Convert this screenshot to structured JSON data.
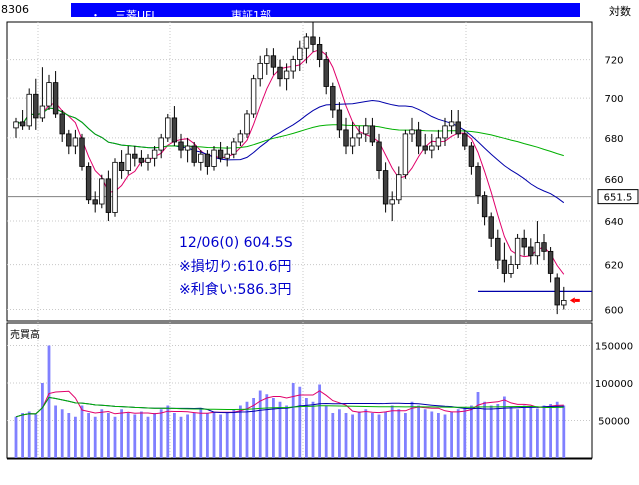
{
  "header": {
    "code": "8306",
    "dot": "・",
    "name": "三菱UFJ",
    "market": "東証1部",
    "scale": "対数"
  },
  "annotations": {
    "line1": "12/06(0) 604.5S",
    "line2": "※損切り:610.6円",
    "line3": "※利食い:586.3円"
  },
  "price_marker": "651.5",
  "volume_label": "売買高",
  "colors": {
    "up": "#ffffff",
    "down": "#404040",
    "ma_short": "#e0006a",
    "ma_mid": "#0000aa",
    "ma_long": "#00b000",
    "volume_bar": "#8080ff",
    "annotation": "#0000cc"
  },
  "chart_data": [
    {
      "type": "candlestick",
      "scale": "log",
      "ylim": [
        595,
        740
      ],
      "yticks": [
        600,
        620,
        640,
        660,
        680,
        700,
        720
      ],
      "grid": true,
      "reference_line": 651.5,
      "target_line": 608,
      "candles": [
        [
          685,
          690,
          680,
          688
        ],
        [
          688,
          694,
          684,
          686
        ],
        [
          686,
          705,
          684,
          702
        ],
        [
          702,
          710,
          684,
          690
        ],
        [
          690,
          716,
          688,
          696
        ],
        [
          696,
          712,
          694,
          708
        ],
        [
          708,
          714,
          690,
          692
        ],
        [
          692,
          694,
          678,
          682
        ],
        [
          682,
          684,
          672,
          676
        ],
        [
          676,
          684,
          672,
          680
        ],
        [
          680,
          682,
          664,
          666
        ],
        [
          666,
          668,
          648,
          650
        ],
        [
          650,
          654,
          644,
          648
        ],
        [
          648,
          662,
          646,
          660
        ],
        [
          660,
          664,
          640,
          644
        ],
        [
          644,
          670,
          642,
          668
        ],
        [
          668,
          674,
          660,
          664
        ],
        [
          664,
          676,
          662,
          672
        ],
        [
          672,
          676,
          666,
          670
        ],
        [
          670,
          674,
          666,
          668
        ],
        [
          668,
          672,
          664,
          670
        ],
        [
          670,
          676,
          666,
          674
        ],
        [
          674,
          682,
          670,
          680
        ],
        [
          680,
          692,
          678,
          690
        ],
        [
          690,
          696,
          676,
          678
        ],
        [
          678,
          682,
          670,
          674
        ],
        [
          674,
          680,
          668,
          676
        ],
        [
          676,
          678,
          666,
          668
        ],
        [
          668,
          674,
          664,
          672
        ],
        [
          672,
          674,
          662,
          666
        ],
        [
          666,
          676,
          664,
          674
        ],
        [
          674,
          678,
          668,
          670
        ],
        [
          670,
          676,
          666,
          672
        ],
        [
          672,
          680,
          670,
          678
        ],
        [
          678,
          684,
          676,
          682
        ],
        [
          682,
          694,
          680,
          692
        ],
        [
          692,
          712,
          690,
          710
        ],
        [
          710,
          722,
          706,
          718
        ],
        [
          718,
          726,
          712,
          722
        ],
        [
          722,
          726,
          712,
          716
        ],
        [
          716,
          720,
          706,
          710
        ],
        [
          710,
          718,
          704,
          714
        ],
        [
          714,
          722,
          710,
          720
        ],
        [
          720,
          730,
          714,
          726
        ],
        [
          726,
          734,
          718,
          732
        ],
        [
          732,
          740,
          724,
          728
        ],
        [
          728,
          732,
          716,
          720
        ],
        [
          720,
          724,
          702,
          706
        ],
        [
          706,
          708,
          690,
          694
        ],
        [
          694,
          698,
          680,
          684
        ],
        [
          684,
          690,
          672,
          676
        ],
        [
          676,
          688,
          672,
          680
        ],
        [
          680,
          686,
          676,
          682
        ],
        [
          682,
          690,
          678,
          686
        ],
        [
          686,
          690,
          676,
          678
        ],
        [
          678,
          682,
          660,
          664
        ],
        [
          664,
          668,
          644,
          648
        ],
        [
          648,
          654,
          640,
          650
        ],
        [
          650,
          666,
          648,
          662
        ],
        [
          662,
          684,
          660,
          682
        ],
        [
          682,
          690,
          678,
          684
        ],
        [
          684,
          688,
          672,
          676
        ],
        [
          676,
          682,
          672,
          674
        ],
        [
          674,
          682,
          670,
          676
        ],
        [
          676,
          684,
          674,
          680
        ],
        [
          680,
          690,
          676,
          686
        ],
        [
          686,
          694,
          682,
          688
        ],
        [
          688,
          694,
          680,
          682
        ],
        [
          682,
          684,
          674,
          676
        ],
        [
          676,
          678,
          662,
          666
        ],
        [
          666,
          668,
          648,
          652
        ],
        [
          652,
          654,
          638,
          642
        ],
        [
          642,
          644,
          628,
          632
        ],
        [
          632,
          636,
          618,
          622
        ],
        [
          622,
          630,
          612,
          616
        ],
        [
          616,
          624,
          614,
          620
        ],
        [
          620,
          634,
          618,
          632
        ],
        [
          632,
          636,
          624,
          628
        ],
        [
          628,
          632,
          620,
          624
        ],
        [
          624,
          640,
          620,
          630
        ],
        [
          630,
          634,
          622,
          626
        ],
        [
          626,
          628,
          612,
          616
        ],
        [
          614,
          616,
          598,
          602
        ],
        [
          602,
          610,
          600,
          604
        ]
      ]
    },
    {
      "type": "bar",
      "title": "売買高",
      "ylim": [
        0,
        180000
      ],
      "yticks": [
        50000,
        100000,
        150000
      ],
      "values": [
        55000,
        60000,
        62000,
        58000,
        100000,
        150000,
        70000,
        65000,
        60000,
        55000,
        70000,
        60000,
        55000,
        65000,
        60000,
        55000,
        65000,
        60000,
        58000,
        62000,
        55000,
        60000,
        65000,
        70000,
        60000,
        55000,
        58000,
        60000,
        65000,
        60000,
        62000,
        58000,
        60000,
        65000,
        70000,
        75000,
        80000,
        90000,
        85000,
        80000,
        75000,
        70000,
        100000,
        95000,
        80000,
        75000,
        98000,
        70000,
        60000,
        65000,
        60000,
        58000,
        62000,
        65000,
        60000,
        58000,
        62000,
        70000,
        65000,
        60000,
        75000,
        70000,
        65000,
        62000,
        60000,
        58000,
        62000,
        65000,
        68000,
        70000,
        88000,
        75000,
        70000,
        72000,
        82000,
        68000,
        65000,
        70000,
        68000,
        66000,
        70000,
        72000,
        75000,
        70000
      ]
    }
  ]
}
